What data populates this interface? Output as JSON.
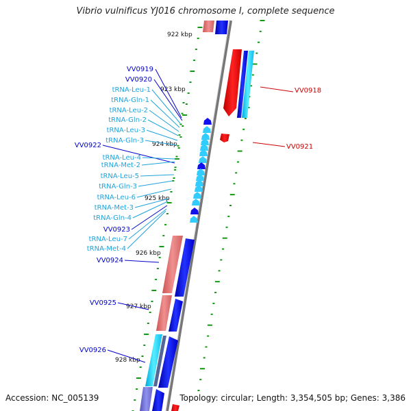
{
  "title": "Vibrio vulnificus YJ016 chromosome I, complete sequence",
  "footer": {
    "accession": "Accession: NC_005139",
    "summary": "Topology: circular; Length: 3,354,505 bp; Genes: 3,386"
  },
  "colors": {
    "protein_plus": "#1111ee",
    "protein_minus": "#ee1111",
    "trna": "#33ccff",
    "label_blue": "#0000cc",
    "label_red": "#cc0000",
    "label_trna": "#1fa3dd",
    "tick_green": "#119911",
    "axis": "#8a8a8a"
  },
  "scale_labels": [
    "922 kbp",
    "923 kbp",
    "924 kbp",
    "925 kbp",
    "926 kbp",
    "927 kbp",
    "928 kbp"
  ],
  "left_labels": [
    {
      "text": "VV0919",
      "type": "protein"
    },
    {
      "text": "VV0920",
      "type": "protein"
    },
    {
      "text": "tRNA-Leu-1",
      "type": "trna"
    },
    {
      "text": "tRNA-Gln-1",
      "type": "trna"
    },
    {
      "text": "tRNA-Leu-2",
      "type": "trna"
    },
    {
      "text": "tRNA-Gln-2",
      "type": "trna"
    },
    {
      "text": "tRNA-Leu-3",
      "type": "trna"
    },
    {
      "text": "tRNA-Gln-3",
      "type": "trna"
    },
    {
      "text": "VV0922",
      "type": "protein"
    },
    {
      "text": "tRNA-Leu-4",
      "type": "trna"
    },
    {
      "text": "tRNA-Met-2",
      "type": "trna"
    },
    {
      "text": "tRNA-Leu-5",
      "type": "trna"
    },
    {
      "text": "tRNA-Gln-3",
      "type": "trna"
    },
    {
      "text": "tRNA-Leu-6",
      "type": "trna"
    },
    {
      "text": "tRNA-Met-3",
      "type": "trna"
    },
    {
      "text": "tRNA-Gln-4",
      "type": "trna"
    },
    {
      "text": "VV0923",
      "type": "protein"
    },
    {
      "text": "tRNA-Leu-7",
      "type": "trna"
    },
    {
      "text": "tRNA-Met-4",
      "type": "trna"
    },
    {
      "text": "VV0924",
      "type": "protein"
    },
    {
      "text": "VV0925",
      "type": "protein"
    },
    {
      "text": "VV0926",
      "type": "protein"
    }
  ],
  "right_labels": [
    {
      "text": "VV0918",
      "type": "protein"
    },
    {
      "text": "VV0921",
      "type": "protein"
    }
  ]
}
